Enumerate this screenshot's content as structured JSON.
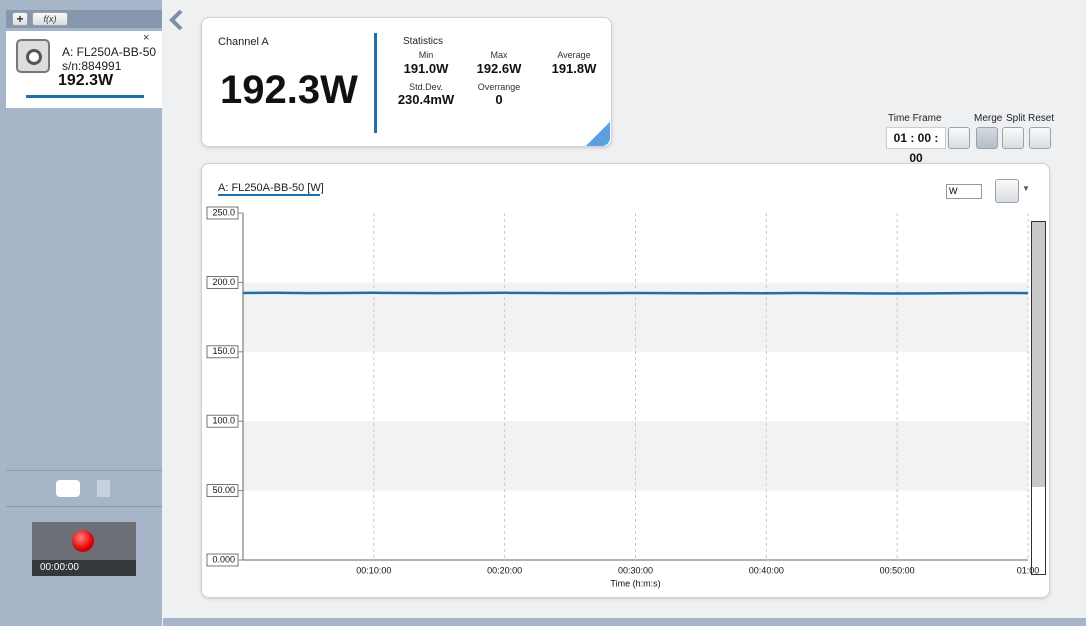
{
  "sidebar": {
    "device": {
      "name": "A: FL250A-BB-50",
      "serial": "s/n:884991",
      "reading": "192.3W"
    },
    "function_button": "f(x)",
    "recorder": {
      "time": "00:00:00"
    }
  },
  "readout": {
    "channel": "Channel A",
    "value": "192.3W"
  },
  "statistics": {
    "title": "Statistics",
    "items": [
      {
        "label": "Min",
        "value": "191.0W"
      },
      {
        "label": "Max",
        "value": "192.6W"
      },
      {
        "label": "Average",
        "value": "191.8W"
      },
      {
        "label": "Std.Dev.",
        "value": "230.4mW"
      },
      {
        "label": "Overrange",
        "value": "0"
      }
    ]
  },
  "toolbar": {
    "time_frame_label": "Time Frame",
    "time_frame": "01 : 00 : 00",
    "merge": "Merge",
    "split": "Split",
    "reset": "Reset"
  },
  "chart_data": {
    "type": "line",
    "x_label": "Time (h:m:s)",
    "unit": "W",
    "x": [
      0,
      150,
      300,
      450,
      600,
      750,
      900,
      1050,
      1200,
      1350,
      1500,
      1650,
      1800,
      1950,
      2100,
      2250,
      2400,
      2550,
      2700,
      2850,
      3000,
      3150,
      3300,
      3450,
      3600
    ],
    "series": [
      {
        "name": "A: FL250A-BB-50 [W]",
        "color": "#1f6fa8",
        "values": [
          192.4,
          192.5,
          192.3,
          192.4,
          192.5,
          192.4,
          192.3,
          192.4,
          192.5,
          192.4,
          192.3,
          192.3,
          192.4,
          192.3,
          192.2,
          192.3,
          192.2,
          192.4,
          192.3,
          192.1,
          192.0,
          192.1,
          192.3,
          192.4,
          192.3
        ]
      }
    ],
    "xlim": [
      0,
      3600
    ],
    "xticks": [
      {
        "value": 600,
        "label": "00:10:00"
      },
      {
        "value": 1200,
        "label": "00:20:00"
      },
      {
        "value": 1800,
        "label": "00:30:00"
      },
      {
        "value": 2400,
        "label": "00:40:00"
      },
      {
        "value": 3000,
        "label": "00:50:00"
      },
      {
        "value": 3600,
        "label": "01:00"
      }
    ],
    "ylim": [
      0,
      250
    ],
    "yticks": [
      {
        "value": 0,
        "label": "0.000"
      },
      {
        "value": 50,
        "label": "50.00"
      },
      {
        "value": 100,
        "label": "100.0"
      },
      {
        "value": 150,
        "label": "150.0"
      },
      {
        "value": 200,
        "label": "200.0"
      },
      {
        "value": 250,
        "label": "250.0"
      }
    ],
    "grid": true,
    "shaded_bands": true
  }
}
